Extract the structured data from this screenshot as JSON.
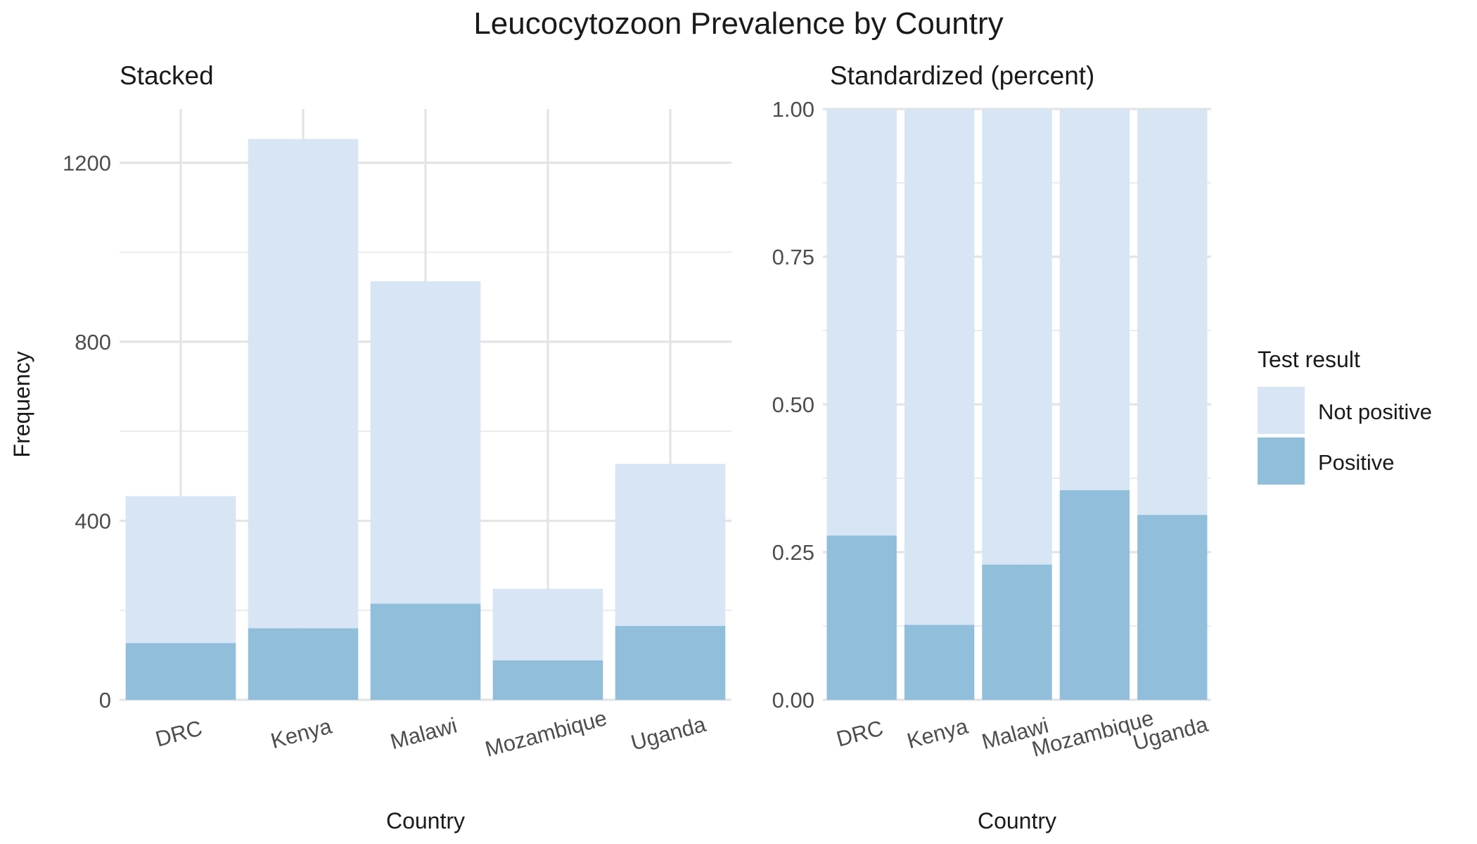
{
  "figure": {
    "title": "Leucocytozoon Prevalence by Country"
  },
  "legend": {
    "title": "Test result",
    "position": "right",
    "items": [
      {
        "label": "Not positive",
        "color": "#d7e5f4"
      },
      {
        "label": "Positive",
        "color": "#90bedb"
      }
    ]
  },
  "chart_data": [
    {
      "type": "bar",
      "subtype": "stacked",
      "title": "Stacked",
      "xlabel": "Country",
      "ylabel": "Frequency",
      "ylim": [
        0,
        1320
      ],
      "yticks": [
        0,
        400,
        800,
        1200
      ],
      "grid": true,
      "categories": [
        "DRC",
        "Kenya",
        "Malawi",
        "Mozambique",
        "Uganda"
      ],
      "series": [
        {
          "name": "Positive",
          "values": [
            127,
            160,
            215,
            88,
            165
          ],
          "color": "#90bedb"
        },
        {
          "name": "Not positive",
          "values": [
            328,
            1093,
            720,
            160,
            362
          ],
          "color": "#d7e5f4"
        }
      ]
    },
    {
      "type": "bar",
      "subtype": "stacked-percent",
      "title": "Standardized (percent)",
      "xlabel": "Country",
      "ylabel": "",
      "ylim": [
        0,
        1.0
      ],
      "yticks": [
        "0.00",
        "0.25",
        "0.50",
        "0.75",
        "1.00"
      ],
      "grid": true,
      "categories": [
        "DRC",
        "Kenya",
        "Malawi",
        "Mozambique",
        "Uganda"
      ],
      "series": [
        {
          "name": "Positive",
          "values": [
            0.278,
            0.127,
            0.229,
            0.355,
            0.313
          ],
          "color": "#90bedb"
        },
        {
          "name": "Not positive",
          "values": [
            0.722,
            0.873,
            0.771,
            0.645,
            0.687
          ],
          "color": "#d7e5f4"
        }
      ]
    }
  ]
}
